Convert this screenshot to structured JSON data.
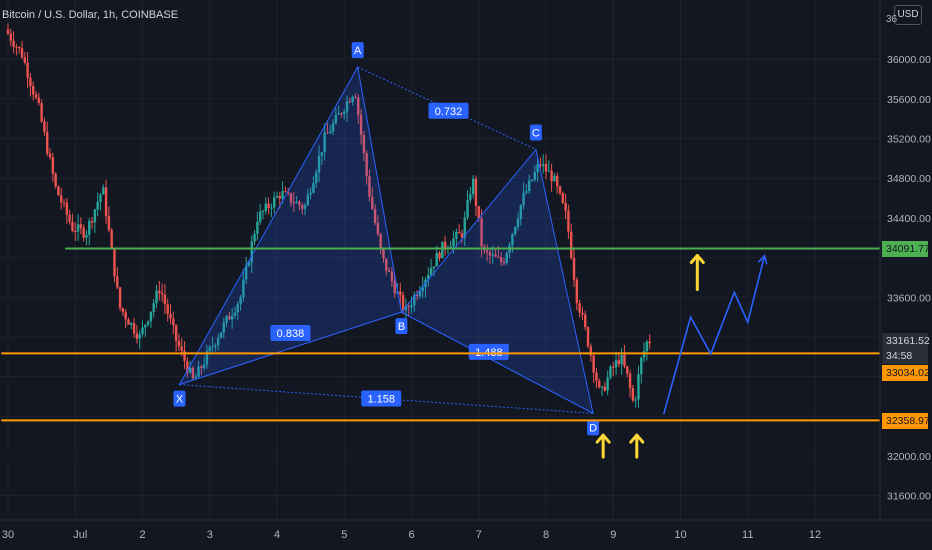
{
  "header": {
    "title": "Bitcoin / U.S. Dollar, 1h, COINBASE",
    "currency": "USD"
  },
  "price_tags": {
    "resistance": "34091.77",
    "current_price": "33161.52",
    "countdown": "34:58",
    "upper_support": "33034.02",
    "lower_support": "32358.97",
    "top_partial": "36"
  },
  "colors": {
    "background": "#131722",
    "bull": "#26a69a",
    "bear": "#ef5350",
    "resistance_line": "#4caf50",
    "support_line": "#ff9800",
    "pattern": "#2962ff",
    "arrows": "#fdd835"
  },
  "icons": [
    "arrow-up-icon",
    "arrow-up-icon",
    "arrow-up-icon",
    "arrow-up-icon"
  ],
  "chart_data": {
    "type": "candlestick",
    "title": "Bitcoin / U.S. Dollar, 1h, COINBASE",
    "ylim": [
      31300,
      36500
    ],
    "y_ticks": [
      31600,
      32000,
      32400,
      32800,
      33200,
      33600,
      34000,
      34400,
      34800,
      35200,
      35600,
      36000
    ],
    "y_tick_labels": [
      "31600.00",
      "32000.00",
      "",
      "",
      "",
      "33600.00",
      "",
      "34400.00",
      "34800.00",
      "35200.00",
      "35600.00",
      "36000.00"
    ],
    "x_tick_labels": [
      "30",
      "Jul",
      "2",
      "3",
      "4",
      "5",
      "6",
      "7",
      "8",
      "9",
      "10",
      "11",
      "12"
    ],
    "x_tick_days": [
      0,
      1,
      2,
      3,
      4,
      5,
      6,
      7,
      8,
      9,
      10,
      11,
      12
    ],
    "x_range_days": [
      -0.1,
      13.0
    ],
    "price_path": [
      [
        0.0,
        36300
      ],
      [
        0.25,
        36050
      ],
      [
        0.5,
        35500
      ],
      [
        0.75,
        34700
      ],
      [
        1.0,
        34300
      ],
      [
        1.2,
        34250
      ],
      [
        1.45,
        34700
      ],
      [
        1.7,
        33500
      ],
      [
        2.0,
        33200
      ],
      [
        2.3,
        33700
      ],
      [
        2.55,
        33150
      ],
      [
        2.8,
        32750
      ],
      [
        3.15,
        33200
      ],
      [
        3.5,
        33600
      ],
      [
        3.75,
        34400
      ],
      [
        4.1,
        34650
      ],
      [
        4.45,
        34500
      ],
      [
        4.75,
        35200
      ],
      [
        5.2,
        35700
      ],
      [
        5.4,
        34700
      ],
      [
        5.6,
        34000
      ],
      [
        5.95,
        33450
      ],
      [
        6.2,
        33750
      ],
      [
        6.5,
        34100
      ],
      [
        6.8,
        34250
      ],
      [
        6.95,
        34800
      ],
      [
        7.1,
        34050
      ],
      [
        7.4,
        33950
      ],
      [
        7.7,
        34600
      ],
      [
        7.95,
        34950
      ],
      [
        8.15,
        34800
      ],
      [
        8.35,
        34400
      ],
      [
        8.5,
        33600
      ],
      [
        8.65,
        33200
      ],
      [
        8.85,
        32600
      ],
      [
        9.0,
        32850
      ],
      [
        9.15,
        33000
      ],
      [
        9.25,
        32800
      ],
      [
        9.35,
        32500
      ],
      [
        9.45,
        32950
      ],
      [
        9.55,
        33161.52
      ]
    ],
    "pattern_points": [
      {
        "label": "X",
        "day": 2.55,
        "price": 32720
      },
      {
        "label": "A",
        "day": 5.2,
        "price": 35920
      },
      {
        "label": "B",
        "day": 5.85,
        "price": 33450
      },
      {
        "label": "C",
        "day": 7.85,
        "price": 35090
      },
      {
        "label": "D",
        "day": 8.7,
        "price": 32430
      }
    ],
    "pattern_ratios": [
      {
        "label": "0.732",
        "day": 6.55,
        "price": 35480
      },
      {
        "label": "0.838",
        "day": 4.2,
        "price": 33240
      },
      {
        "label": "1.488",
        "day": 7.15,
        "price": 33050
      },
      {
        "label": "1.158",
        "day": 5.55,
        "price": 32580
      }
    ],
    "horizontal_levels": [
      {
        "price": 34091.77,
        "role": "resistance",
        "from_day": 0.85
      },
      {
        "price": 33034.02,
        "role": "support",
        "from_day": -0.1
      },
      {
        "price": 32358.97,
        "role": "support",
        "from_day": -0.1
      }
    ],
    "projection_path": [
      [
        9.75,
        32420
      ],
      [
        10.15,
        33400
      ],
      [
        10.45,
        33030
      ],
      [
        10.8,
        33650
      ],
      [
        11.0,
        33350
      ],
      [
        11.25,
        34020
      ]
    ],
    "up_arrows": [
      {
        "day": 10.25,
        "price": 33850
      },
      {
        "day": 8.85,
        "price": 32100
      },
      {
        "day": 9.35,
        "price": 32100
      }
    ]
  }
}
